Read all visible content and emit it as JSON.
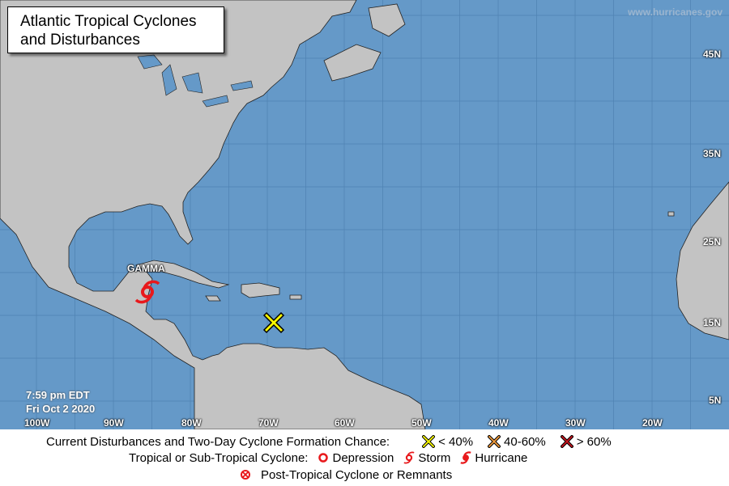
{
  "title": {
    "line1": "Atlantic Tropical Cyclones",
    "line2": "and Disturbances"
  },
  "watermark": "www.hurricanes.gov",
  "timestamp": {
    "time": "7:59 pm EDT",
    "date": "Fri Oct 2 2020"
  },
  "longitude_labels": [
    "100W",
    "90W",
    "80W",
    "70W",
    "60W",
    "50W",
    "40W",
    "30W",
    "20W"
  ],
  "latitude_labels": [
    "45N",
    "35N",
    "25N",
    "15N",
    "5N"
  ],
  "systems": [
    {
      "name": "GAMMA",
      "type": "storm",
      "icon": "tropical-storm-icon",
      "color": "#e8191c"
    },
    {
      "type": "disturbance",
      "chance": "< 40%",
      "icon": "x-icon",
      "color": "#ffff00"
    }
  ],
  "legend": {
    "disturbances_label": "Current Disturbances and Two-Day Cyclone Formation Chance:",
    "low": "< 40%",
    "low_color": "#ffff00",
    "medium": "40-60%",
    "medium_color": "#f39c3c",
    "high": "> 60%",
    "high_color": "#c8141e",
    "cyclone_label": "Tropical or Sub-Tropical Cyclone:",
    "depression": "Depression",
    "storm": "Storm",
    "hurricane": "Hurricane",
    "post_tropical": "Post-Tropical Cyclone or Remnants"
  },
  "colors": {
    "ocean": "#6599c8",
    "land": "#c3c3c3",
    "grid": "#5587b5"
  }
}
